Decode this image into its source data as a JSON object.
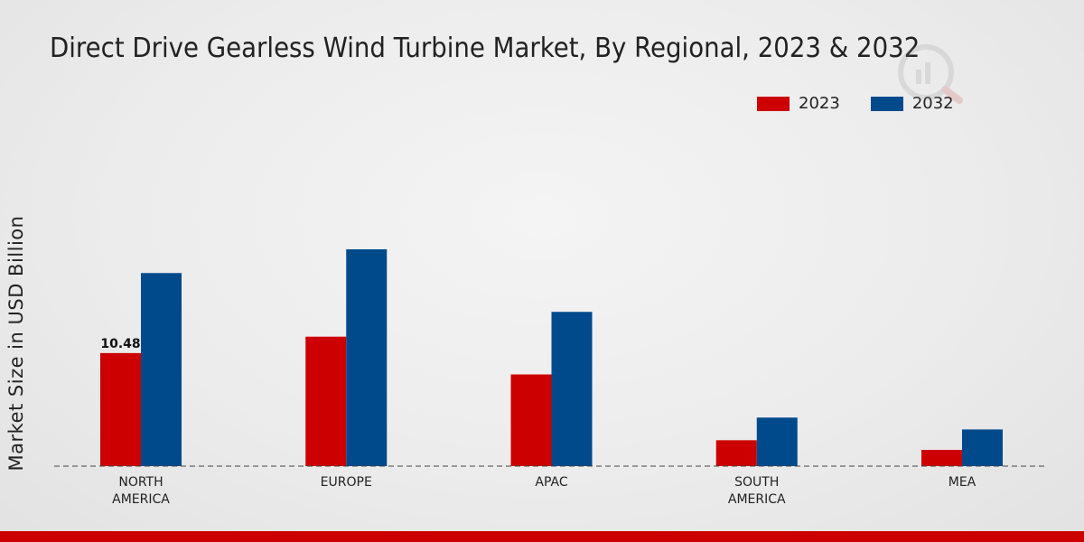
{
  "chart_data": {
    "type": "bar",
    "title": "Direct Drive Gearless Wind Turbine Market, By Regional, 2023 & 2032",
    "xlabel": "",
    "ylabel": "Market Size in USD Billion",
    "categories": [
      "NORTH AMERICA",
      "EUROPE",
      "APAC",
      "SOUTH AMERICA",
      "MEA"
    ],
    "category_lines": [
      [
        "NORTH",
        "AMERICA"
      ],
      [
        "EUROPE"
      ],
      [
        "APAC"
      ],
      [
        "SOUTH",
        "AMERICA"
      ],
      [
        "MEA"
      ]
    ],
    "series": [
      {
        "name": "2023",
        "color": "#cc0000",
        "values": [
          10.48,
          12.0,
          8.5,
          2.4,
          1.5
        ]
      },
      {
        "name": "2032",
        "color": "#004a8c",
        "values": [
          17.9,
          20.1,
          14.3,
          4.5,
          3.4
        ]
      }
    ],
    "data_labels": [
      {
        "series": 0,
        "index": 0,
        "text": "10.48"
      }
    ],
    "ylim": [
      0,
      34
    ],
    "legend_position": "top-right",
    "grid": false
  }
}
